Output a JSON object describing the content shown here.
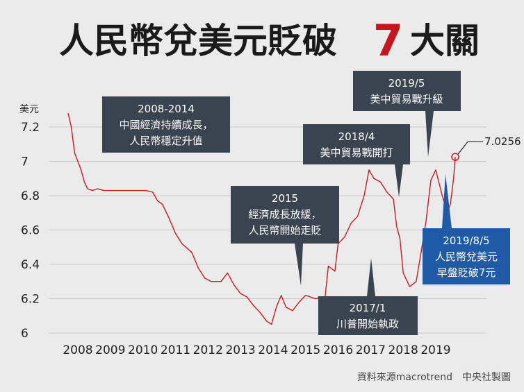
{
  "title": {
    "prefix": "人民幣兌美元貶破",
    "number": "7",
    "suffix": "大關"
  },
  "source": "資料來源macrotrend　中央社製圖",
  "colors": {
    "background": "#ebebeb",
    "line": "#d4161c",
    "box_dark": "#3a4350",
    "box_blue": "#1f5aa6",
    "grid": "#c8c8c8"
  },
  "chart_data": {
    "type": "line",
    "ylabel": "美元",
    "ylim": [
      6.0,
      7.3
    ],
    "yticks": [
      {
        "value": 7.2,
        "label": "7.2"
      },
      {
        "value": 7.0,
        "label": "7"
      },
      {
        "value": 6.8,
        "label": "6.8"
      },
      {
        "value": 6.6,
        "label": "6.6"
      },
      {
        "value": 6.4,
        "label": "6.4"
      },
      {
        "value": 6.2,
        "label": "6.2"
      },
      {
        "value": 6.0,
        "label": "6"
      }
    ],
    "xlim": [
      2007.6,
      2019.8
    ],
    "xticks": [
      {
        "value": 2008,
        "label": "2008"
      },
      {
        "value": 2009,
        "label": "2009"
      },
      {
        "value": 2010,
        "label": "2010"
      },
      {
        "value": 2011,
        "label": "2011"
      },
      {
        "value": 2012,
        "label": "2012"
      },
      {
        "value": 2013,
        "label": "2013"
      },
      {
        "value": 2014,
        "label": "2014"
      },
      {
        "value": 2015,
        "label": "2015"
      },
      {
        "value": 2016,
        "label": "2016"
      },
      {
        "value": 2017,
        "label": "2017"
      },
      {
        "value": 2018,
        "label": "2018"
      },
      {
        "value": 2019,
        "label": "2019"
      }
    ],
    "series": [
      {
        "x": [
          2007.7,
          2007.8,
          2007.9,
          2008.0,
          2008.1,
          2008.2,
          2008.3,
          2008.45,
          2008.6,
          2008.8,
          2009.0,
          2009.5,
          2010.0,
          2010.1,
          2010.3,
          2010.45,
          2010.6,
          2010.8,
          2011.0,
          2011.2,
          2011.5,
          2011.7,
          2011.9,
          2012.1,
          2012.4,
          2012.6,
          2012.8,
          2013.0,
          2013.2,
          2013.4,
          2013.6,
          2013.8,
          2013.95,
          2014.1,
          2014.25,
          2014.4,
          2014.6,
          2014.8,
          2015.0,
          2015.3,
          2015.6,
          2015.7,
          2015.9,
          2016.0,
          2016.2,
          2016.4,
          2016.6,
          2016.8,
          2016.95,
          2017.1,
          2017.3,
          2017.5,
          2017.7,
          2017.8,
          2017.9,
          2018.0,
          2018.2,
          2018.4,
          2018.55,
          2018.7,
          2018.85,
          2019.0,
          2019.2,
          2019.35,
          2019.45,
          2019.55,
          2019.6
        ],
        "values": [
          7.28,
          7.2,
          7.05,
          7.0,
          6.95,
          6.88,
          6.84,
          6.83,
          6.84,
          6.83,
          6.83,
          6.83,
          6.83,
          6.83,
          6.82,
          6.77,
          6.75,
          6.67,
          6.58,
          6.52,
          6.47,
          6.38,
          6.32,
          6.3,
          6.3,
          6.35,
          6.28,
          6.23,
          6.21,
          6.16,
          6.12,
          6.07,
          6.05,
          6.15,
          6.22,
          6.15,
          6.13,
          6.18,
          6.22,
          6.2,
          6.21,
          6.39,
          6.36,
          6.52,
          6.56,
          6.64,
          6.68,
          6.8,
          6.95,
          6.9,
          6.88,
          6.82,
          6.78,
          6.62,
          6.55,
          6.35,
          6.27,
          6.3,
          6.47,
          6.65,
          6.89,
          6.95,
          6.8,
          6.7,
          6.75,
          6.9,
          7.0256
        ]
      }
    ],
    "end_label": "7.0256"
  },
  "annotations": [
    {
      "lines": [
        "2008-2014",
        "中國經濟持續成長，",
        "人民幣穩定升值"
      ]
    },
    {
      "lines": [
        "2015",
        "經濟成長放緩，",
        "人民幣開始走貶"
      ]
    },
    {
      "lines": [
        "2017/1",
        "川普開始執政"
      ]
    },
    {
      "lines": [
        "2018/4",
        "美中貿易戰開打"
      ]
    },
    {
      "lines": [
        "2019/5",
        "美中貿易戰升級"
      ]
    },
    {
      "lines": [
        "2019/8/5",
        "人民幣兌美元",
        "早盤貶破7元"
      ]
    }
  ]
}
